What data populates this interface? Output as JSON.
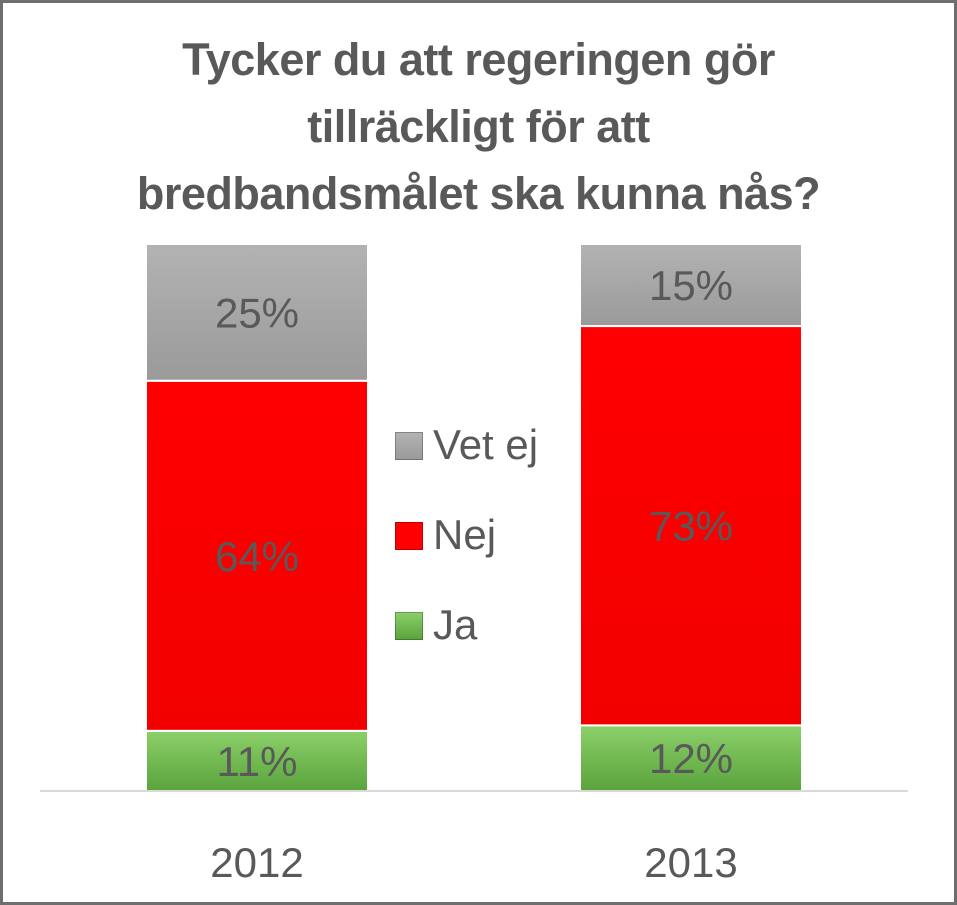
{
  "chart_data": {
    "type": "bar",
    "stacked": true,
    "title_lines": [
      "Tycker du att regeringen gör",
      "tillräckligt för att",
      "bredbandsmålet ska kunna nås?"
    ],
    "categories": [
      "2012",
      "2013"
    ],
    "series": [
      {
        "name": "Ja",
        "values": [
          11,
          12
        ],
        "labels": [
          "11%",
          "12%"
        ],
        "color": "#6bb64a"
      },
      {
        "name": "Nej",
        "values": [
          64,
          73
        ],
        "labels": [
          "64%",
          "73%"
        ],
        "color": "#ff0000"
      },
      {
        "name": "Vet ej",
        "values": [
          25,
          15
        ],
        "labels": [
          "25%",
          "15%"
        ],
        "color": "#a6a6a6"
      }
    ],
    "legend_order": [
      "Vet ej",
      "Nej",
      "Ja"
    ],
    "ylim": [
      0,
      100
    ],
    "grid": false,
    "legend_position": "center"
  }
}
